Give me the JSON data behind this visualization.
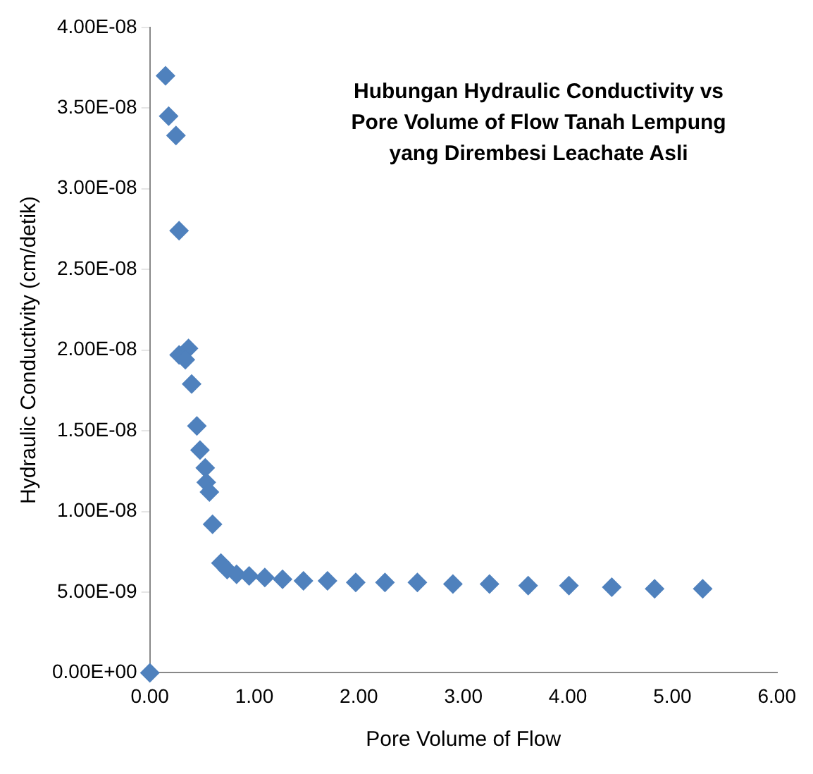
{
  "chart_data": {
    "type": "scatter",
    "title": "Hubungan Hydraulic Conductivity vs Pore Volume of Flow Tanah Lempung yang Dirembesi Leachate Asli",
    "xlabel": "Pore Volume of Flow",
    "ylabel": "Hydraulic Conductivity (cm/detik)",
    "x": [
      0,
      0.15,
      0.18,
      0.25,
      0.28,
      0.28,
      0.37,
      0.34,
      0.4,
      0.45,
      0.48,
      0.53,
      0.54,
      0.57,
      0.6,
      0.68,
      0.74,
      0.83,
      0.95,
      1.1,
      1.27,
      1.47,
      1.7,
      1.97,
      2.25,
      2.56,
      2.9,
      3.25,
      3.62,
      4.01,
      4.42,
      4.83,
      5.29
    ],
    "series": [
      {
        "color": "#4f81bd",
        "values": [
          0,
          3.7e-08,
          3.45e-08,
          3.33e-08,
          2.74e-08,
          1.97e-08,
          2.01e-08,
          1.94e-08,
          1.79e-08,
          1.53e-08,
          1.38e-08,
          1.27e-08,
          1.18e-08,
          1.12e-08,
          9.2e-09,
          6.8e-09,
          6.4e-09,
          6.1e-09,
          6e-09,
          5.9e-09,
          5.8e-09,
          5.7e-09,
          5.7e-09,
          5.6e-09,
          5.6e-09,
          5.6e-09,
          5.5e-09,
          5.5e-09,
          5.4e-09,
          5.4e-09,
          5.3e-09,
          5.2e-09,
          5.2e-09
        ]
      }
    ],
    "marker": "diamond",
    "xlim": [
      0,
      6
    ],
    "xticks": [
      {
        "value": 0,
        "label": "0.00"
      },
      {
        "value": 1,
        "label": "1.00"
      },
      {
        "value": 2,
        "label": "2.00"
      },
      {
        "value": 3,
        "label": "3.00"
      },
      {
        "value": 4,
        "label": "4.00"
      },
      {
        "value": 5,
        "label": "5.00"
      },
      {
        "value": 6,
        "label": "6.00"
      }
    ],
    "ylim": [
      0,
      4e-08
    ],
    "yticks": [
      {
        "value": 0,
        "label": "0.00E+00"
      },
      {
        "value": 5e-09,
        "label": "5.00E-09"
      },
      {
        "value": 1e-08,
        "label": "1.00E-08"
      },
      {
        "value": 1.5e-08,
        "label": "1.50E-08"
      },
      {
        "value": 2e-08,
        "label": "2.00E-08"
      },
      {
        "value": 2.5e-08,
        "label": "2.50E-08"
      },
      {
        "value": 3e-08,
        "label": "3.00E-08"
      },
      {
        "value": 3.5e-08,
        "label": "3.50E-08"
      },
      {
        "value": 4e-08,
        "label": "4.00E-08"
      }
    ],
    "grid": false,
    "legend": false
  }
}
